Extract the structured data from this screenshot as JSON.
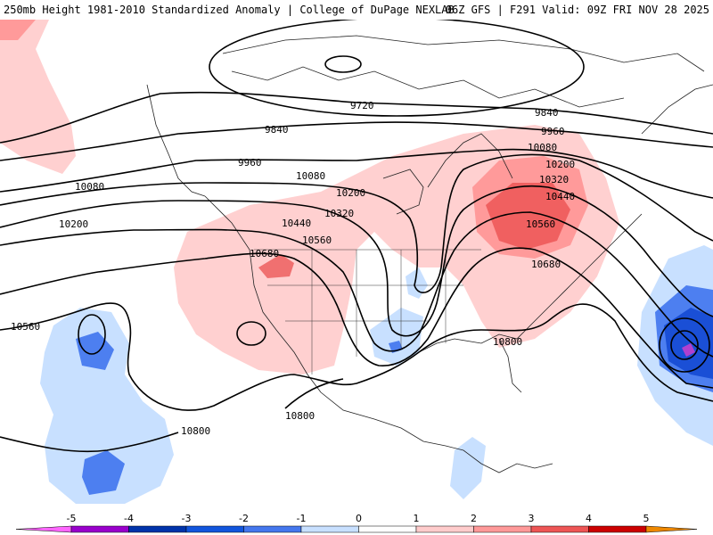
{
  "header": {
    "title": "250mb Height 1981-2010 Standardized Anomaly | College of DuPage NEXLAB",
    "run_info": "06Z GFS | F291 Valid: 09Z FRI NOV 28 2025"
  },
  "contour_labels": [
    "9720",
    "9840",
    "9840",
    "9960",
    "9960",
    "10080",
    "10080",
    "10080",
    "10200",
    "10200",
    "10200",
    "10320",
    "10320",
    "10440",
    "10440",
    "10560",
    "10560",
    "10560",
    "10680",
    "10680",
    "10800",
    "10800",
    "10800"
  ],
  "colorbar": {
    "ticks": [
      "-5",
      "-4",
      "-3",
      "-2",
      "-1",
      "0",
      "1",
      "2",
      "3",
      "4",
      "5"
    ],
    "colors": [
      "#ff66ff",
      "#9900cc",
      "#0033aa",
      "#1155dd",
      "#4477ee",
      "#c8e0ff",
      "#ffffff",
      "#ffcccc",
      "#ff9999",
      "#ee5555",
      "#cc0000",
      "#ee8800",
      "#ffaa00"
    ]
  }
}
